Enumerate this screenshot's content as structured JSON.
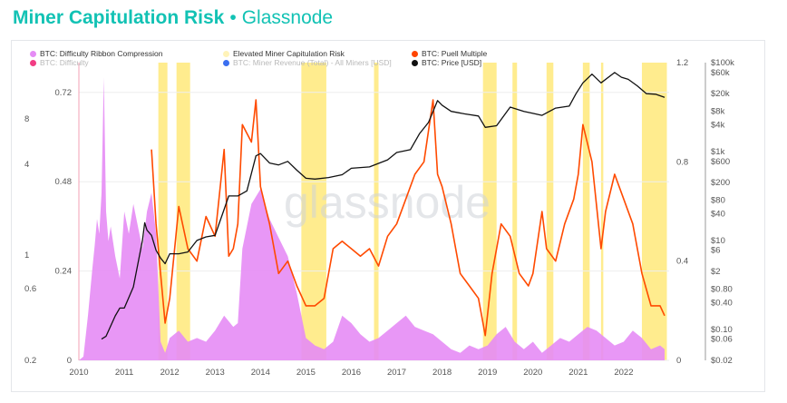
{
  "header": {
    "title": "Miner Capitulation Risk",
    "separator": "•",
    "source": "Glassnode"
  },
  "legend": [
    {
      "label": "BTC: Difficulty Ribbon Compression",
      "color": "#e58cf5",
      "faded": false
    },
    {
      "label": "BTC: Difficulty",
      "color": "#f23d84",
      "faded": true
    },
    {
      "label": "Elevated Miner Capitulation Risk",
      "color": "#fff3b8",
      "faded": false
    },
    {
      "label": "BTC: Miner Revenue (Total) - All Miners [USD]",
      "color": "#3b6ff0",
      "faded": true
    },
    {
      "label": "BTC: Puell Multiple",
      "color": "#ff4500",
      "faded": false
    },
    {
      "label": "BTC: Price [USD]",
      "color": "#111111",
      "faded": false
    }
  ],
  "watermark": "glassnode",
  "colors": {
    "ribbon": "#e58cf5",
    "capitulation": "#ffe97a",
    "puell": "#ff4a00",
    "price": "#111111",
    "grid": "#eeeeee"
  },
  "chart_data": {
    "type": "line",
    "x_ticks": [
      "2010",
      "2011",
      "2012",
      "2013",
      "2014",
      "2015",
      "2016",
      "2017",
      "2018",
      "2019",
      "2020",
      "2021",
      "2022"
    ],
    "axes": {
      "left_outer": {
        "ticks": [
          "8",
          "4",
          "1",
          "0.6",
          "0.2"
        ]
      },
      "left_inner": {
        "ticks": [
          "0.72",
          "0.48",
          "0.24",
          "0"
        ],
        "ylim": [
          0,
          0.8
        ]
      },
      "right_inner": {
        "ticks": [
          "1.2",
          "0.8",
          "0.4",
          "0"
        ],
        "ylim": [
          0,
          1.2
        ]
      },
      "right_outer": {
        "ticks": [
          "$100k",
          "$60k",
          "$20k",
          "$8k",
          "$4k",
          "$1k",
          "$600",
          "$200",
          "$80",
          "$40",
          "$10",
          "$6",
          "$2",
          "$0.80",
          "$0.40",
          "$0.10",
          "$0.06",
          "$0.02"
        ],
        "scale": "log"
      }
    },
    "series": [
      {
        "name": "BTC: Difficulty Ribbon Compression",
        "kind": "area",
        "x": [
          2010.0,
          2010.1,
          2010.2,
          2010.3,
          2010.35,
          2010.4,
          2010.45,
          2010.5,
          2010.55,
          2010.6,
          2010.65,
          2010.7,
          2010.8,
          2010.9,
          2011.0,
          2011.1,
          2011.2,
          2011.3,
          2011.4,
          2011.5,
          2011.6,
          2011.7,
          2011.8,
          2011.9,
          2012.0,
          2012.2,
          2012.4,
          2012.6,
          2012.8,
          2013.0,
          2013.2,
          2013.4,
          2013.5,
          2013.6,
          2013.8,
          2014.0,
          2014.2,
          2014.4,
          2014.6,
          2014.8,
          2015.0,
          2015.2,
          2015.4,
          2015.6,
          2015.8,
          2016.0,
          2016.2,
          2016.4,
          2016.6,
          2016.8,
          2017.0,
          2017.2,
          2017.4,
          2017.6,
          2017.8,
          2018.0,
          2018.2,
          2018.4,
          2018.6,
          2018.8,
          2019.0,
          2019.2,
          2019.4,
          2019.6,
          2019.8,
          2020.0,
          2020.2,
          2020.4,
          2020.6,
          2020.8,
          2021.0,
          2021.2,
          2021.4,
          2021.6,
          2021.8,
          2022.0,
          2022.2,
          2022.4,
          2022.6,
          2022.8,
          2022.9
        ],
        "y": [
          0.0,
          0.01,
          0.12,
          0.25,
          0.31,
          0.38,
          0.34,
          0.45,
          0.76,
          0.4,
          0.32,
          0.36,
          0.28,
          0.22,
          0.4,
          0.34,
          0.42,
          0.36,
          0.3,
          0.4,
          0.45,
          0.34,
          0.05,
          0.02,
          0.06,
          0.08,
          0.05,
          0.06,
          0.05,
          0.08,
          0.12,
          0.09,
          0.1,
          0.3,
          0.42,
          0.46,
          0.38,
          0.33,
          0.28,
          0.18,
          0.06,
          0.04,
          0.03,
          0.05,
          0.12,
          0.1,
          0.07,
          0.05,
          0.06,
          0.08,
          0.1,
          0.12,
          0.09,
          0.08,
          0.07,
          0.05,
          0.03,
          0.02,
          0.04,
          0.03,
          0.04,
          0.07,
          0.09,
          0.05,
          0.03,
          0.05,
          0.02,
          0.04,
          0.06,
          0.05,
          0.07,
          0.09,
          0.08,
          0.06,
          0.04,
          0.05,
          0.08,
          0.06,
          0.03,
          0.04,
          0.03
        ]
      },
      {
        "name": "Elevated Miner Capitulation Risk",
        "kind": "bands",
        "ranges": [
          [
            2011.75,
            2011.95
          ],
          [
            2012.15,
            2012.45
          ],
          [
            2014.9,
            2015.45
          ],
          [
            2016.5,
            2016.6
          ],
          [
            2018.9,
            2019.2
          ],
          [
            2019.55,
            2019.65
          ],
          [
            2020.3,
            2020.45
          ],
          [
            2021.1,
            2021.25
          ],
          [
            2021.5,
            2021.55
          ],
          [
            2022.4,
            2022.95
          ]
        ]
      },
      {
        "name": "BTC: Puell Multiple",
        "kind": "line",
        "x": [
          2011.6,
          2011.7,
          2011.8,
          2011.9,
          2012.0,
          2012.2,
          2012.4,
          2012.6,
          2012.8,
          2013.0,
          2013.2,
          2013.3,
          2013.4,
          2013.5,
          2013.6,
          2013.8,
          2013.9,
          2014.0,
          2014.2,
          2014.4,
          2014.6,
          2014.8,
          2015.0,
          2015.2,
          2015.4,
          2015.6,
          2015.8,
          2016.0,
          2016.2,
          2016.4,
          2016.6,
          2016.8,
          2017.0,
          2017.2,
          2017.4,
          2017.6,
          2017.8,
          2017.9,
          2018.0,
          2018.2,
          2018.4,
          2018.6,
          2018.8,
          2018.95,
          2019.1,
          2019.3,
          2019.5,
          2019.7,
          2019.9,
          2020.0,
          2020.2,
          2020.3,
          2020.5,
          2020.7,
          2020.9,
          2021.0,
          2021.1,
          2021.3,
          2021.5,
          2021.6,
          2021.8,
          2022.0,
          2022.2,
          2022.4,
          2022.6,
          2022.8,
          2022.9
        ],
        "y": [
          0.85,
          0.55,
          0.35,
          0.15,
          0.25,
          0.62,
          0.45,
          0.4,
          0.58,
          0.5,
          0.85,
          0.42,
          0.45,
          0.55,
          0.95,
          0.88,
          1.05,
          0.7,
          0.55,
          0.35,
          0.4,
          0.3,
          0.22,
          0.22,
          0.25,
          0.45,
          0.48,
          0.45,
          0.42,
          0.45,
          0.38,
          0.5,
          0.55,
          0.65,
          0.75,
          0.8,
          1.05,
          0.75,
          0.7,
          0.55,
          0.35,
          0.3,
          0.25,
          0.1,
          0.35,
          0.55,
          0.5,
          0.35,
          0.3,
          0.35,
          0.6,
          0.45,
          0.4,
          0.55,
          0.65,
          0.75,
          0.95,
          0.8,
          0.45,
          0.6,
          0.75,
          0.65,
          0.55,
          0.35,
          0.22,
          0.22,
          0.18
        ]
      },
      {
        "name": "BTC: Price [USD]",
        "kind": "line",
        "scale": "log",
        "x": [
          2010.5,
          2010.6,
          2010.8,
          2010.9,
          2011.0,
          2011.2,
          2011.3,
          2011.4,
          2011.45,
          2011.5,
          2011.6,
          2011.7,
          2011.8,
          2011.9,
          2012.0,
          2012.2,
          2012.4,
          2012.6,
          2012.8,
          2013.0,
          2013.2,
          2013.3,
          2013.5,
          2013.7,
          2013.9,
          2014.0,
          2014.2,
          2014.4,
          2014.6,
          2014.8,
          2015.0,
          2015.2,
          2015.5,
          2015.8,
          2016.0,
          2016.4,
          2016.8,
          2017.0,
          2017.3,
          2017.5,
          2017.7,
          2017.9,
          2018.0,
          2018.2,
          2018.5,
          2018.8,
          2018.95,
          2019.2,
          2019.5,
          2019.8,
          2020.0,
          2020.2,
          2020.5,
          2020.8,
          2020.95,
          2021.1,
          2021.3,
          2021.5,
          2021.8,
          2021.95,
          2022.1,
          2022.3,
          2022.5,
          2022.7,
          2022.9
        ],
        "y": [
          0.06,
          0.07,
          0.2,
          0.3,
          0.3,
          0.9,
          3,
          10,
          25,
          17,
          13,
          6,
          4,
          3,
          5,
          5,
          5.5,
          10,
          12,
          13,
          50,
          100,
          100,
          130,
          800,
          900,
          550,
          500,
          600,
          380,
          250,
          240,
          260,
          300,
          420,
          450,
          650,
          950,
          1100,
          2500,
          4500,
          14000,
          11000,
          8000,
          7000,
          6300,
          3500,
          3800,
          10000,
          8000,
          7200,
          6500,
          9500,
          10500,
          20000,
          35000,
          55000,
          35000,
          60000,
          47000,
          42000,
          30000,
          20000,
          19500,
          16500
        ]
      }
    ]
  }
}
